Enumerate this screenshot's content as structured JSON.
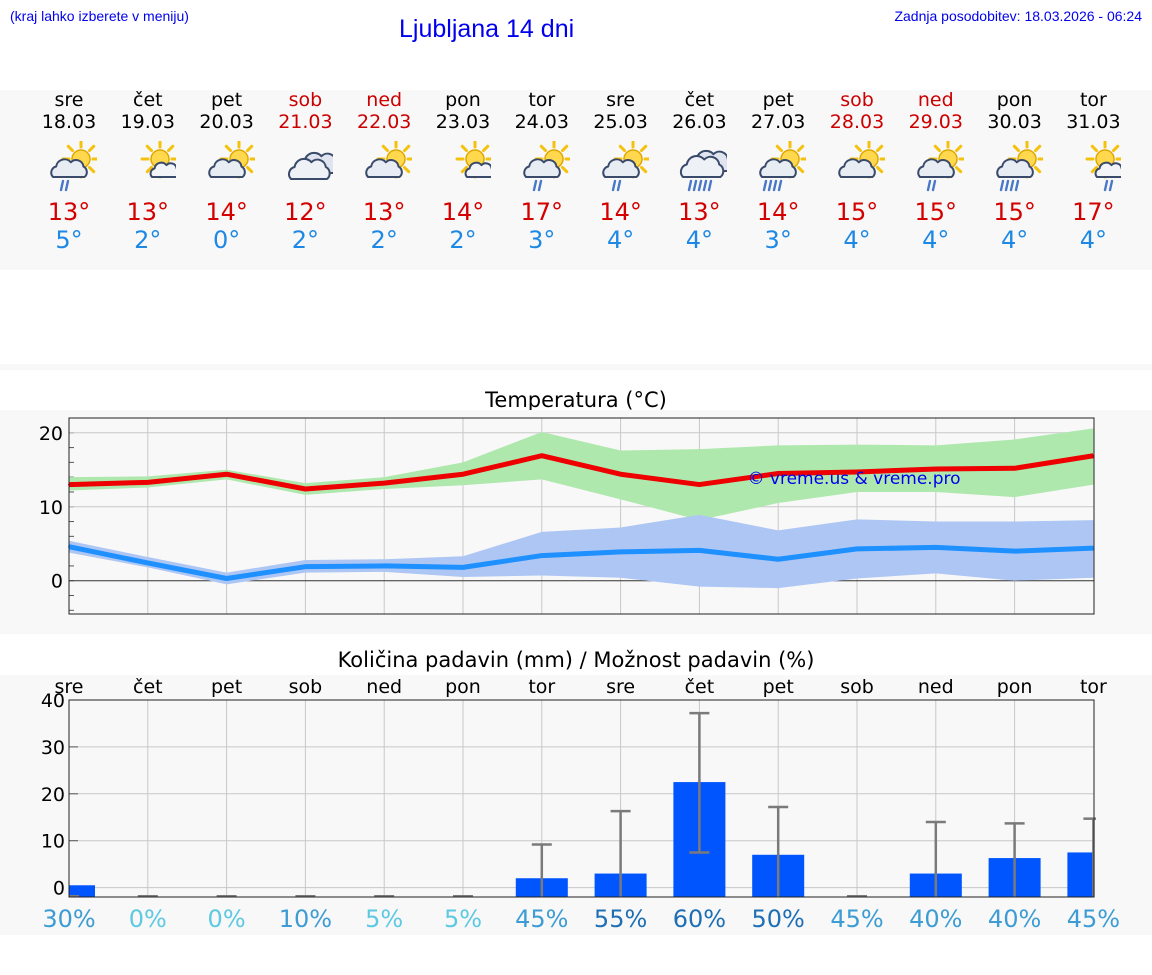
{
  "header": {
    "hint": "(kraj lahko izberete v meniju)",
    "title": "Ljubljana 14 dni",
    "updated": "Zadnja posodobitev: 18.03.2026 - 06:24"
  },
  "days": [
    {
      "name": "sre",
      "date": "18.03",
      "weekend": false,
      "icon": "sun-cloud-light-rain-icon",
      "max": "13°",
      "min": "5°"
    },
    {
      "name": "čet",
      "date": "19.03",
      "weekend": false,
      "icon": "sun-small-cloud-icon",
      "max": "13°",
      "min": "2°"
    },
    {
      "name": "pet",
      "date": "20.03",
      "weekend": false,
      "icon": "sun-cloud-icon",
      "max": "14°",
      "min": "0°"
    },
    {
      "name": "sob",
      "date": "21.03",
      "weekend": true,
      "icon": "cloudy-icon",
      "max": "12°",
      "min": "2°"
    },
    {
      "name": "ned",
      "date": "22.03",
      "weekend": true,
      "icon": "sun-cloud-icon",
      "max": "13°",
      "min": "2°"
    },
    {
      "name": "pon",
      "date": "23.03",
      "weekend": false,
      "icon": "sun-small-cloud-icon",
      "max": "14°",
      "min": "2°"
    },
    {
      "name": "tor",
      "date": "24.03",
      "weekend": false,
      "icon": "sun-cloud-light-rain-icon",
      "max": "17°",
      "min": "3°"
    },
    {
      "name": "sre",
      "date": "25.03",
      "weekend": false,
      "icon": "sun-cloud-light-rain-icon",
      "max": "14°",
      "min": "4°"
    },
    {
      "name": "čet",
      "date": "26.03",
      "weekend": false,
      "icon": "cloud-rain-icon",
      "max": "13°",
      "min": "4°"
    },
    {
      "name": "pet",
      "date": "27.03",
      "weekend": false,
      "icon": "sun-cloud-rain-icon",
      "max": "14°",
      "min": "3°"
    },
    {
      "name": "sob",
      "date": "28.03",
      "weekend": true,
      "icon": "sun-cloud-icon",
      "max": "15°",
      "min": "4°"
    },
    {
      "name": "ned",
      "date": "29.03",
      "weekend": true,
      "icon": "sun-cloud-light-rain-icon",
      "max": "15°",
      "min": "4°"
    },
    {
      "name": "pon",
      "date": "30.03",
      "weekend": false,
      "icon": "sun-cloud-rain-icon",
      "max": "15°",
      "min": "4°"
    },
    {
      "name": "tor",
      "date": "31.03",
      "weekend": false,
      "icon": "sun-small-cloud-light-rain-icon",
      "max": "17°",
      "min": "4°"
    }
  ],
  "colors": {
    "max_line": "#ee0000",
    "max_band": "#aee8ad",
    "min_line": "#1e90ff",
    "min_band": "#aec6f4",
    "bar": "#0055ff",
    "whisker": "#7a7a7a",
    "weekend": "#cc0000"
  },
  "chart_data": [
    {
      "type": "line",
      "title": "Temperatura (°C)",
      "watermark": "© vreme.us & vreme.pro",
      "ylim": [
        -4.5,
        22
      ],
      "yticks": [
        0,
        10,
        20
      ],
      "series": [
        {
          "name": "max",
          "values": [
            13,
            13.3,
            14.4,
            12.4,
            13.2,
            14.4,
            16.9,
            14.4,
            13,
            14.5,
            14.7,
            15.1,
            15.2,
            16.9
          ],
          "band_low": [
            12.2,
            12.6,
            13.7,
            11.6,
            12.4,
            12.9,
            13.7,
            11,
            8.2,
            10.5,
            12,
            12,
            11.3,
            13
          ],
          "band_high": [
            14,
            14.1,
            15,
            13.2,
            14,
            16,
            20.1,
            17.6,
            17.8,
            18.3,
            18.4,
            18.3,
            19.1,
            20.6
          ]
        },
        {
          "name": "min",
          "values": [
            4.6,
            2.4,
            0.3,
            1.9,
            2,
            1.8,
            3.4,
            3.9,
            4.1,
            2.9,
            4.3,
            4.5,
            4,
            4.4
          ],
          "band_low": [
            3.8,
            1.8,
            -0.5,
            1.1,
            1.2,
            0.5,
            0.7,
            0.4,
            -0.8,
            -1,
            0.3,
            1,
            0,
            0.4
          ],
          "band_high": [
            5.4,
            3.2,
            1.1,
            2.8,
            2.9,
            3.3,
            6.6,
            7.2,
            8.9,
            6.8,
            8.3,
            8,
            8,
            8.2
          ]
        }
      ]
    },
    {
      "type": "bar",
      "title": "Količina padavin (mm) / Možnost padavin (%)",
      "categories": [
        "sre",
        "čet",
        "pet",
        "sob",
        "ned",
        "pon",
        "tor",
        "sre",
        "čet",
        "pet",
        "sob",
        "ned",
        "pon",
        "tor"
      ],
      "ylim": [
        -2,
        40
      ],
      "yticks": [
        0,
        10,
        20,
        30,
        40
      ],
      "values": [
        0.5,
        0,
        0,
        0,
        0,
        0,
        2,
        3,
        22.5,
        7,
        0,
        3,
        6.3,
        7.5
      ],
      "err_low": [
        0,
        0,
        0,
        0,
        0,
        0,
        0,
        0,
        7.5,
        0,
        0,
        0,
        0,
        0
      ],
      "err_high": [
        0,
        0,
        0,
        0,
        0,
        0,
        9.2,
        16.3,
        37.2,
        17.2,
        0,
        14,
        13.7,
        14.7
      ],
      "chance": [
        "30%",
        "0%",
        "0%",
        "10%",
        "5%",
        "5%",
        "45%",
        "55%",
        "60%",
        "50%",
        "45%",
        "40%",
        "40%",
        "45%"
      ],
      "chance_colors": [
        "#3d9cd4",
        "#5dc9e2",
        "#5dc9e2",
        "#3d9cd4",
        "#5dc9e2",
        "#5dc9e2",
        "#3d9cd4",
        "#1f6fb5",
        "#1f6fb5",
        "#1f6fb5",
        "#3d9cd4",
        "#3d9cd4",
        "#3d9cd4",
        "#3d9cd4"
      ]
    }
  ]
}
